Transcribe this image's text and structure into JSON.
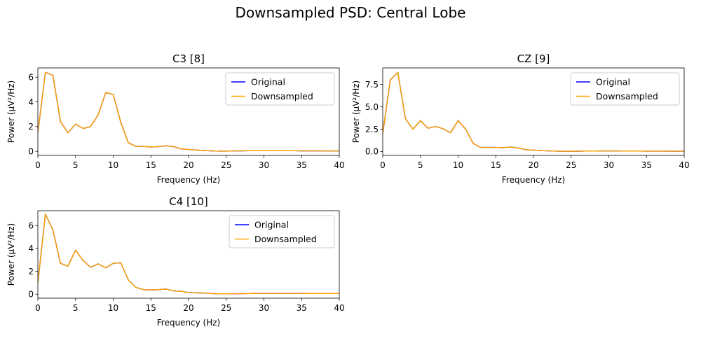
{
  "figure": {
    "title": "Downsampled PSD: Central Lobe"
  },
  "legend": {
    "placement": "upper-right"
  },
  "colors": {
    "original": "#0000ff",
    "downsampled": "#ffa500",
    "axes": "#000000",
    "background": "#ffffff"
  },
  "chart_data": [
    {
      "type": "line",
      "title": "C3 [8]",
      "xlabel": "Frequency (Hz)",
      "ylabel": "Power (µV²/Hz)",
      "xlim": [
        0,
        40
      ],
      "ylim": [
        -0.33,
        6.75
      ],
      "xticks": [
        0,
        5,
        10,
        15,
        20,
        25,
        30,
        35,
        40
      ],
      "xtick_labels": [
        "0",
        "5",
        "10",
        "15",
        "20",
        "25",
        "30",
        "35",
        "40"
      ],
      "yticks": [
        0,
        2,
        4,
        6
      ],
      "ytick_labels": [
        "0",
        "2",
        "4",
        "6"
      ],
      "grid": false,
      "x": [
        0,
        1,
        2,
        3,
        4,
        5,
        6,
        7,
        8,
        9,
        10,
        11,
        12,
        13,
        14,
        15,
        16,
        17,
        18,
        19,
        20,
        21,
        22,
        23,
        24,
        25,
        26,
        27,
        28,
        29,
        30,
        31,
        32,
        33,
        34,
        35,
        36,
        37,
        38,
        39,
        40
      ],
      "series": [
        {
          "name": "Original",
          "color": "#0000ff",
          "values": [
            1.5,
            6.4,
            6.15,
            2.4,
            1.5,
            2.2,
            1.85,
            2.0,
            2.95,
            4.75,
            4.6,
            2.35,
            0.7,
            0.4,
            0.4,
            0.35,
            0.38,
            0.45,
            0.38,
            0.2,
            0.15,
            0.1,
            0.07,
            0.04,
            0.02,
            0.02,
            0.03,
            0.04,
            0.05,
            0.05,
            0.05,
            0.05,
            0.05,
            0.05,
            0.05,
            0.04,
            0.04,
            0.04,
            0.03,
            0.03,
            0.03
          ]
        },
        {
          "name": "Downsampled",
          "color": "#ffa500",
          "values": [
            1.5,
            6.4,
            6.15,
            2.4,
            1.5,
            2.2,
            1.85,
            2.0,
            2.95,
            4.75,
            4.6,
            2.35,
            0.7,
            0.4,
            0.4,
            0.35,
            0.38,
            0.45,
            0.38,
            0.2,
            0.15,
            0.1,
            0.07,
            0.04,
            0.02,
            0.02,
            0.03,
            0.04,
            0.05,
            0.05,
            0.05,
            0.05,
            0.05,
            0.05,
            0.05,
            0.04,
            0.04,
            0.04,
            0.03,
            0.03,
            0.03
          ]
        }
      ]
    },
    {
      "type": "line",
      "title": "CZ [9]",
      "xlabel": "Frequency (Hz)",
      "ylabel": "Power (µV²/Hz)",
      "xlim": [
        0,
        40
      ],
      "ylim": [
        -0.44,
        9.35
      ],
      "xticks": [
        0,
        5,
        10,
        15,
        20,
        25,
        30,
        35,
        40
      ],
      "xtick_labels": [
        "0",
        "5",
        "10",
        "15",
        "20",
        "25",
        "30",
        "35",
        "40"
      ],
      "yticks": [
        0,
        2.5,
        5,
        7.5
      ],
      "ytick_labels": [
        "0.0",
        "2.5",
        "5.0",
        "7.5"
      ],
      "grid": false,
      "x": [
        0,
        1,
        2,
        3,
        4,
        5,
        6,
        7,
        8,
        9,
        10,
        11,
        12,
        13,
        14,
        15,
        16,
        17,
        18,
        19,
        20,
        21,
        22,
        23,
        24,
        25,
        26,
        27,
        28,
        29,
        30,
        31,
        32,
        33,
        34,
        35,
        36,
        37,
        38,
        39,
        40
      ],
      "series": [
        {
          "name": "Original",
          "color": "#0000ff",
          "values": [
            2.0,
            8.0,
            8.85,
            3.7,
            2.5,
            3.45,
            2.6,
            2.8,
            2.55,
            2.1,
            3.45,
            2.5,
            0.9,
            0.45,
            0.45,
            0.45,
            0.42,
            0.5,
            0.38,
            0.2,
            0.15,
            0.1,
            0.07,
            0.04,
            0.02,
            0.02,
            0.03,
            0.05,
            0.05,
            0.06,
            0.06,
            0.06,
            0.05,
            0.05,
            0.05,
            0.04,
            0.04,
            0.04,
            0.03,
            0.03,
            0.03
          ]
        },
        {
          "name": "Downsampled",
          "color": "#ffa500",
          "values": [
            2.0,
            8.0,
            8.85,
            3.7,
            2.5,
            3.45,
            2.6,
            2.8,
            2.55,
            2.1,
            3.45,
            2.5,
            0.9,
            0.45,
            0.45,
            0.45,
            0.42,
            0.5,
            0.38,
            0.2,
            0.15,
            0.1,
            0.07,
            0.04,
            0.02,
            0.02,
            0.03,
            0.05,
            0.05,
            0.06,
            0.06,
            0.06,
            0.05,
            0.05,
            0.05,
            0.04,
            0.04,
            0.04,
            0.03,
            0.03,
            0.03
          ]
        }
      ]
    },
    {
      "type": "line",
      "title": "C4 [10]",
      "xlabel": "Frequency (Hz)",
      "ylabel": "Power (µV²/Hz)",
      "xlim": [
        0,
        40
      ],
      "ylim": [
        -0.35,
        7.3
      ],
      "xticks": [
        0,
        5,
        10,
        15,
        20,
        25,
        30,
        35,
        40
      ],
      "xtick_labels": [
        "0",
        "5",
        "10",
        "15",
        "20",
        "25",
        "30",
        "35",
        "40"
      ],
      "yticks": [
        0,
        2,
        4,
        6
      ],
      "ytick_labels": [
        "0",
        "2",
        "4",
        "6"
      ],
      "grid": false,
      "x": [
        0,
        1,
        2,
        3,
        4,
        5,
        6,
        7,
        8,
        9,
        10,
        11,
        12,
        13,
        14,
        15,
        16,
        17,
        18,
        19,
        20,
        21,
        22,
        23,
        24,
        25,
        26,
        27,
        28,
        29,
        30,
        31,
        32,
        33,
        34,
        35,
        36,
        37,
        38,
        39,
        40
      ],
      "series": [
        {
          "name": "Original",
          "color": "#0000ff",
          "values": [
            1.0,
            7.0,
            5.6,
            2.7,
            2.45,
            3.85,
            2.95,
            2.35,
            2.65,
            2.3,
            2.7,
            2.75,
            1.25,
            0.6,
            0.4,
            0.38,
            0.4,
            0.45,
            0.3,
            0.25,
            0.15,
            0.12,
            0.1,
            0.06,
            0.03,
            0.03,
            0.04,
            0.05,
            0.06,
            0.07,
            0.07,
            0.07,
            0.07,
            0.07,
            0.07,
            0.07,
            0.06,
            0.06,
            0.06,
            0.06,
            0.06
          ]
        },
        {
          "name": "Downsampled",
          "color": "#ffa500",
          "values": [
            1.0,
            7.0,
            5.6,
            2.7,
            2.45,
            3.85,
            2.95,
            2.35,
            2.65,
            2.3,
            2.7,
            2.75,
            1.25,
            0.6,
            0.4,
            0.38,
            0.4,
            0.45,
            0.3,
            0.25,
            0.15,
            0.12,
            0.1,
            0.06,
            0.03,
            0.03,
            0.04,
            0.05,
            0.06,
            0.07,
            0.07,
            0.07,
            0.07,
            0.07,
            0.07,
            0.07,
            0.06,
            0.06,
            0.06,
            0.06,
            0.06
          ]
        }
      ]
    }
  ]
}
